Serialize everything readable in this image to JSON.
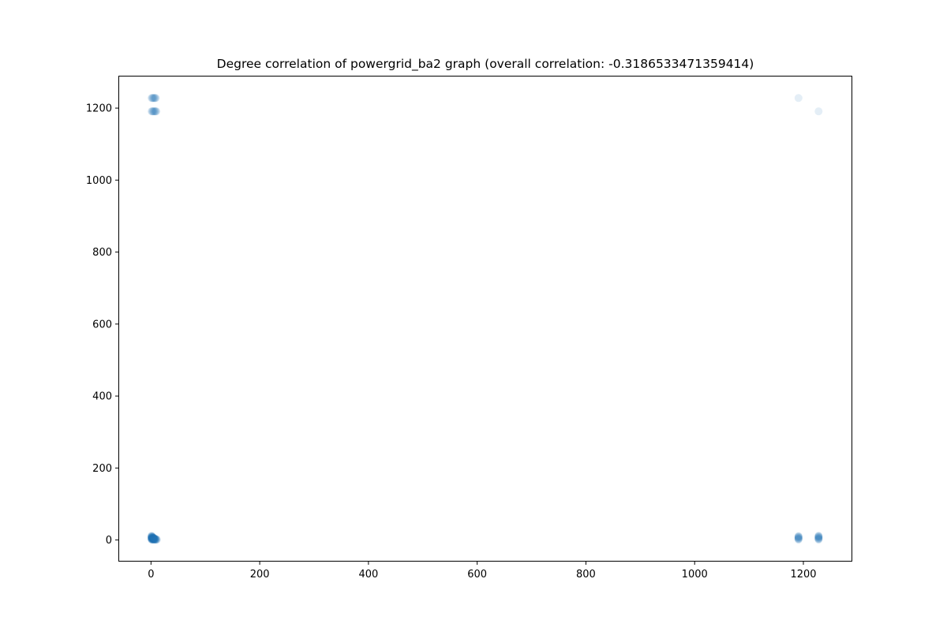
{
  "chart_data": {
    "type": "scatter",
    "title": "Degree correlation of powergrid_ba2 graph (overall correlation: -0.3186533471359414)",
    "xlabel": "",
    "ylabel": "",
    "xlim": [
      -60,
      1290
    ],
    "ylim": [
      -60,
      1290
    ],
    "xticks": [
      0,
      200,
      400,
      600,
      800,
      1000,
      1200
    ],
    "yticks": [
      0,
      200,
      400,
      600,
      800,
      1000,
      1200
    ],
    "grid": false,
    "legend": "none",
    "marker_color": "#1f77b4",
    "marker_opacity": 0.12,
    "series": [
      {
        "points": [
          [
            1,
            1228
          ],
          [
            2,
            1228
          ],
          [
            3,
            1228
          ],
          [
            4,
            1228
          ],
          [
            5,
            1228
          ],
          [
            6,
            1228
          ],
          [
            7,
            1228
          ],
          [
            8,
            1228
          ],
          [
            9,
            1228
          ],
          [
            1,
            1191
          ],
          [
            2,
            1191
          ],
          [
            3,
            1191
          ],
          [
            4,
            1191
          ],
          [
            5,
            1191
          ],
          [
            6,
            1191
          ],
          [
            7,
            1191
          ],
          [
            8,
            1191
          ],
          [
            9,
            1191
          ],
          [
            10,
            1191
          ],
          [
            1191,
            1228
          ],
          [
            1228,
            1191
          ],
          [
            1,
            1
          ],
          [
            1,
            2
          ],
          [
            1,
            3
          ],
          [
            1,
            4
          ],
          [
            1,
            5
          ],
          [
            1,
            6
          ],
          [
            1,
            7
          ],
          [
            1,
            8
          ],
          [
            1,
            9
          ],
          [
            1,
            10
          ],
          [
            1,
            11
          ],
          [
            1,
            12
          ],
          [
            2,
            1
          ],
          [
            2,
            2
          ],
          [
            2,
            3
          ],
          [
            2,
            4
          ],
          [
            2,
            5
          ],
          [
            2,
            6
          ],
          [
            2,
            7
          ],
          [
            2,
            8
          ],
          [
            2,
            9
          ],
          [
            2,
            10
          ],
          [
            3,
            1
          ],
          [
            3,
            2
          ],
          [
            3,
            3
          ],
          [
            3,
            4
          ],
          [
            3,
            5
          ],
          [
            3,
            6
          ],
          [
            3,
            7
          ],
          [
            3,
            8
          ],
          [
            4,
            1
          ],
          [
            4,
            2
          ],
          [
            4,
            3
          ],
          [
            4,
            4
          ],
          [
            4,
            5
          ],
          [
            4,
            6
          ],
          [
            4,
            7
          ],
          [
            5,
            1
          ],
          [
            5,
            2
          ],
          [
            5,
            3
          ],
          [
            5,
            4
          ],
          [
            5,
            5
          ],
          [
            5,
            6
          ],
          [
            6,
            1
          ],
          [
            6,
            2
          ],
          [
            6,
            3
          ],
          [
            6,
            4
          ],
          [
            6,
            5
          ],
          [
            7,
            1
          ],
          [
            7,
            2
          ],
          [
            7,
            3
          ],
          [
            7,
            4
          ],
          [
            8,
            1
          ],
          [
            8,
            2
          ],
          [
            8,
            3
          ],
          [
            9,
            1
          ],
          [
            9,
            2
          ],
          [
            10,
            1
          ],
          [
            10,
            2
          ],
          [
            11,
            1
          ],
          [
            1191,
            1
          ],
          [
            1191,
            2
          ],
          [
            1191,
            3
          ],
          [
            1191,
            4
          ],
          [
            1191,
            5
          ],
          [
            1191,
            6
          ],
          [
            1191,
            7
          ],
          [
            1191,
            8
          ],
          [
            1191,
            9
          ],
          [
            1191,
            10
          ],
          [
            1191,
            11
          ],
          [
            1228,
            1
          ],
          [
            1228,
            2
          ],
          [
            1228,
            3
          ],
          [
            1228,
            4
          ],
          [
            1228,
            5
          ],
          [
            1228,
            6
          ],
          [
            1228,
            7
          ],
          [
            1228,
            8
          ],
          [
            1228,
            9
          ],
          [
            1228,
            10
          ],
          [
            1228,
            11
          ],
          [
            1228,
            12
          ]
        ]
      }
    ]
  }
}
